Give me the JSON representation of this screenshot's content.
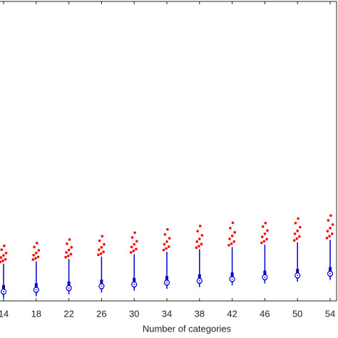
{
  "chart_data": {
    "type": "box",
    "x_label": "Number of categories",
    "categories": [
      14,
      18,
      22,
      26,
      30,
      34,
      38,
      42,
      46,
      50,
      54
    ],
    "box_color": "#0000cc",
    "outlier_color": "#ff0000",
    "ylim": [
      0,
      100
    ],
    "boxes": [
      {
        "min": 1.0,
        "q1": 2.1,
        "median": 3.1,
        "q3": 5.3,
        "max": 12.4,
        "outliers": [
          13.0,
          13.4,
          13.9,
          14.5,
          15.2,
          16.0,
          17.1,
          18.4
        ]
      },
      {
        "min": 1.6,
        "q1": 2.7,
        "median": 3.7,
        "q3": 5.9,
        "max": 13.2,
        "outliers": [
          13.8,
          14.2,
          14.7,
          15.3,
          16.0,
          16.9,
          18.0,
          19.3
        ]
      },
      {
        "min": 2.2,
        "q1": 3.3,
        "median": 4.3,
        "q3": 6.5,
        "max": 14.0,
        "outliers": [
          14.6,
          15.0,
          15.6,
          16.2,
          17.0,
          17.9,
          19.1,
          20.5
        ]
      },
      {
        "min": 2.8,
        "q1": 3.9,
        "median": 4.9,
        "q3": 7.1,
        "max": 14.8,
        "outliers": [
          15.4,
          15.8,
          16.4,
          17.1,
          17.9,
          18.9,
          20.1,
          21.6
        ]
      },
      {
        "min": 3.4,
        "q1": 4.5,
        "median": 5.5,
        "q3": 7.7,
        "max": 15.6,
        "outliers": [
          16.2,
          16.7,
          17.3,
          18.0,
          18.9,
          19.9,
          21.2,
          22.8
        ]
      },
      {
        "min": 4.0,
        "q1": 5.1,
        "median": 6.1,
        "q3": 8.3,
        "max": 16.4,
        "outliers": [
          17.0,
          17.5,
          18.1,
          18.9,
          19.8,
          20.9,
          22.2,
          23.9
        ]
      },
      {
        "min": 4.6,
        "q1": 5.7,
        "median": 6.7,
        "q3": 8.9,
        "max": 17.2,
        "outliers": [
          17.8,
          18.3,
          19.0,
          19.8,
          20.7,
          21.9,
          23.3,
          25.0
        ]
      },
      {
        "min": 5.2,
        "q1": 6.3,
        "median": 7.3,
        "q3": 9.5,
        "max": 18.0,
        "outliers": [
          18.6,
          19.1,
          19.8,
          20.7,
          21.7,
          22.9,
          24.3,
          26.1
        ]
      },
      {
        "min": 5.8,
        "q1": 6.9,
        "median": 7.9,
        "q3": 10.1,
        "max": 18.8,
        "outliers": [
          19.4,
          19.9,
          20.6,
          21.4,
          22.4,
          23.5,
          24.8,
          26.0
        ]
      },
      {
        "min": 6.4,
        "q1": 7.5,
        "median": 8.5,
        "q3": 10.7,
        "max": 19.6,
        "outliers": [
          20.2,
          20.8,
          21.5,
          22.4,
          23.4,
          24.6,
          26.0,
          27.5
        ]
      },
      {
        "min": 7.0,
        "q1": 8.1,
        "median": 9.1,
        "q3": 11.3,
        "max": 20.4,
        "outliers": [
          21.0,
          21.6,
          22.4,
          23.3,
          24.3,
          25.5,
          26.9,
          28.5
        ]
      }
    ]
  }
}
